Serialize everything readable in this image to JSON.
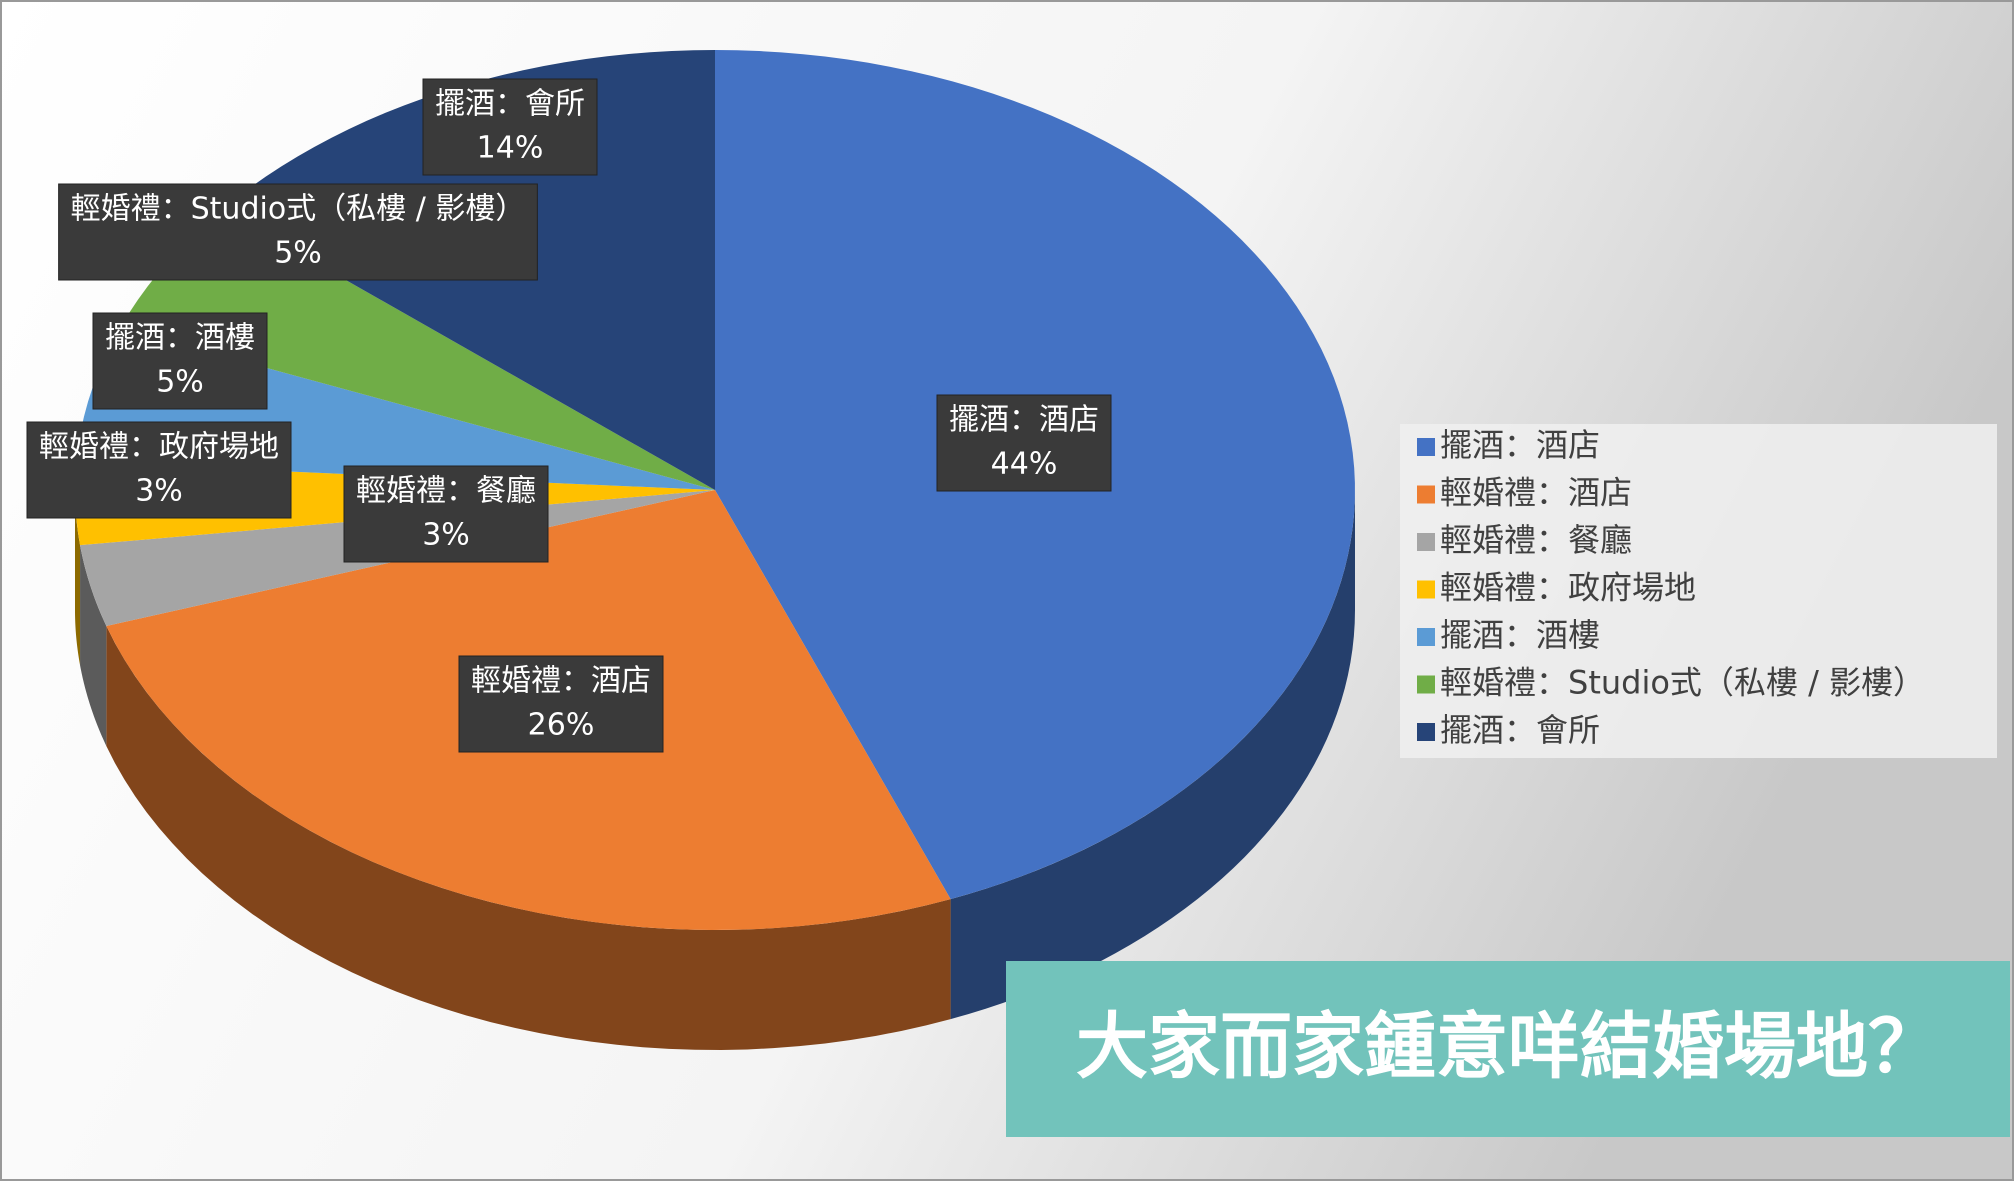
{
  "chart_data": {
    "type": "pie",
    "title": "大家而家鍾意咩結婚場地？",
    "categories": [
      "擺酒：酒店",
      "輕婚禮：酒店",
      "輕婚禮：餐廳",
      "輕婚禮：政府場地",
      "擺酒：酒樓",
      "輕婚禮：Studio式（私樓 / 影樓）",
      "擺酒：會所"
    ],
    "values": [
      44,
      26,
      3,
      3,
      5,
      5,
      14
    ],
    "value_labels": [
      "44%",
      "26%",
      "3%",
      "3%",
      "5%",
      "5%",
      "14%"
    ],
    "colors": [
      "#4472c4",
      "#ed7d31",
      "#a5a5a5",
      "#ffc000",
      "#5b9bd5",
      "#70ad47",
      "#264478"
    ],
    "legend": "right"
  }
}
